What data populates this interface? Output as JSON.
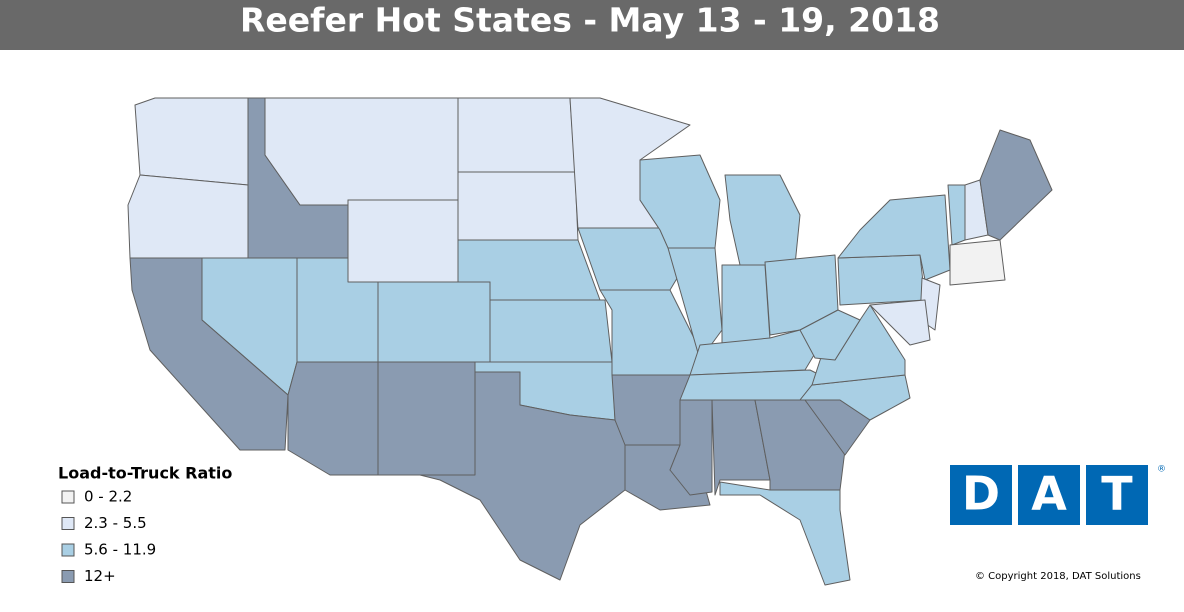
{
  "header": {
    "title": "Reefer Hot States - May 13 - 19, 2018"
  },
  "legend": {
    "title": "Load-to-Truck Ratio",
    "items": [
      {
        "label": "0 - 2.2",
        "color": "#f2f2f2"
      },
      {
        "label": "2.3 - 5.5",
        "color": "#dfe8f6"
      },
      {
        "label": "5.6 - 11.9",
        "color": "#a9cfe4"
      },
      {
        "label": "12+",
        "color": "#8a9bb1"
      }
    ]
  },
  "logo": {
    "letters": [
      "D",
      "A",
      "T"
    ],
    "mark": "®",
    "color": "#0068b4"
  },
  "copyright": "© Copyright 2018, DAT Solutions"
}
